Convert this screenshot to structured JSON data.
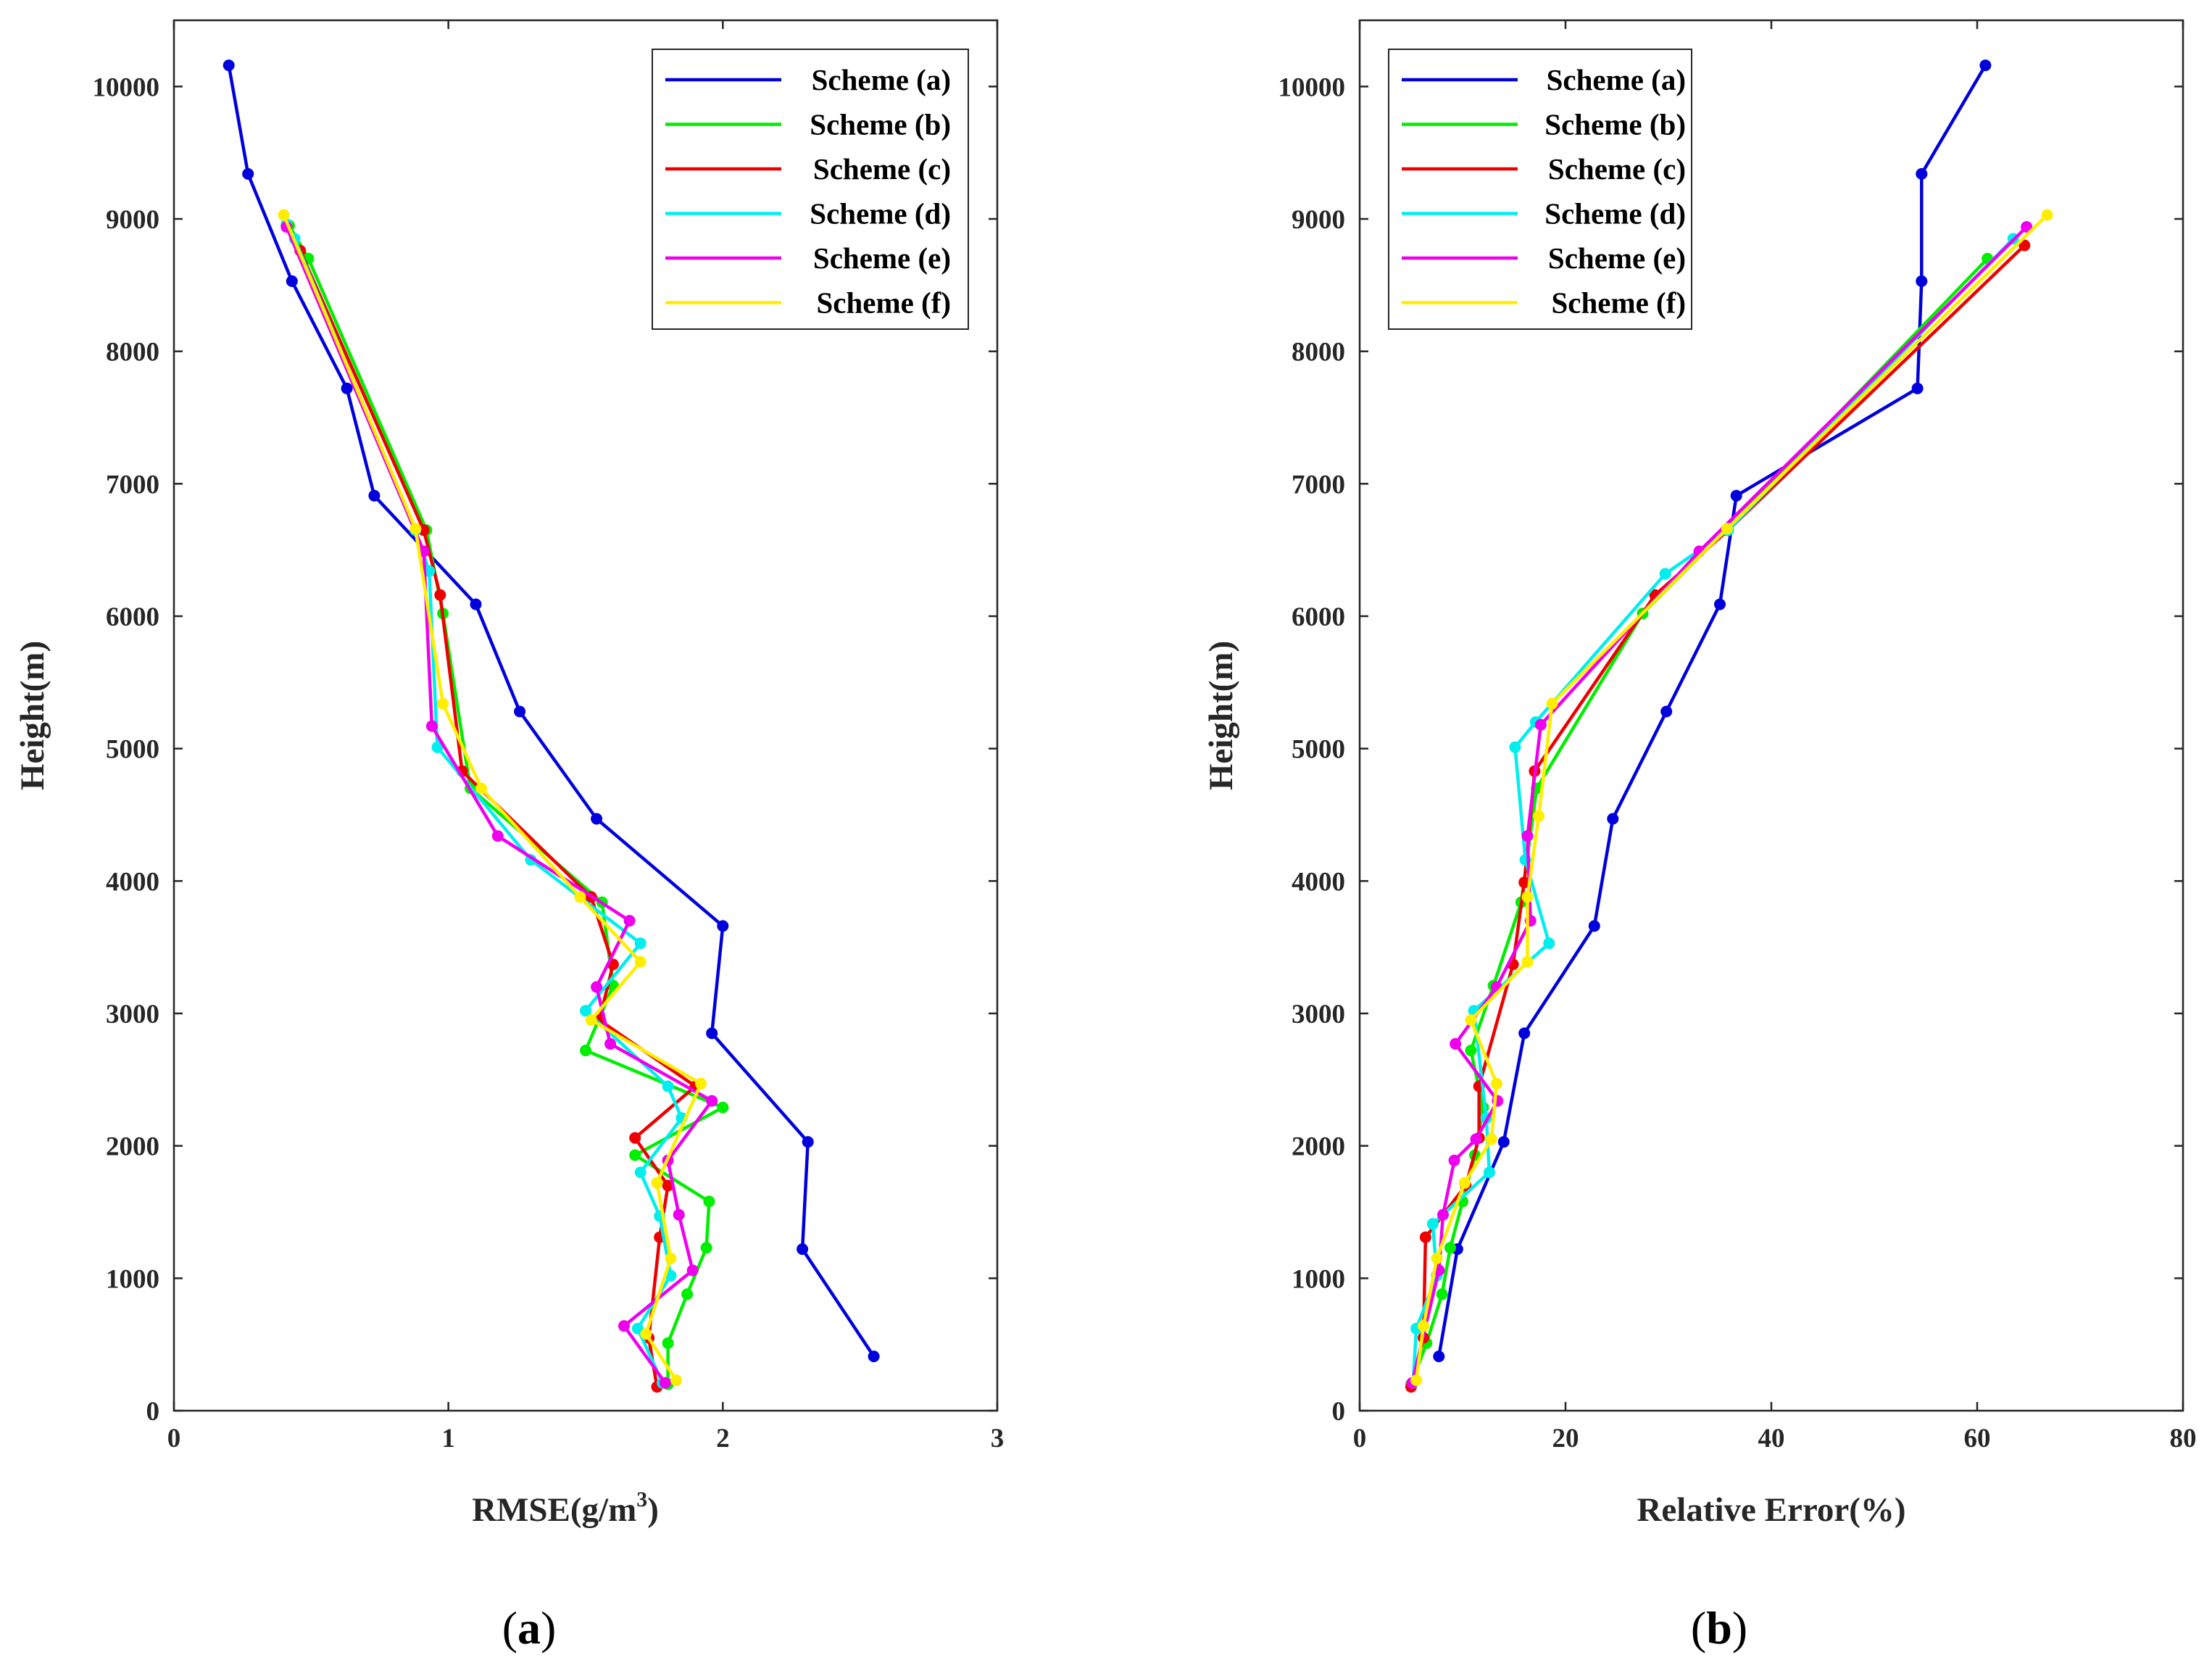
{
  "chart_data": [
    {
      "type": "line",
      "panel": "a",
      "caption": {
        "open": "(",
        "letter": "a",
        "close": ")"
      },
      "title": "",
      "xlabel": "RMSE(g/m",
      "xlabel_sup": "3",
      "xlabel_close": ")",
      "ylabel": "Height(m)",
      "xlim": [
        0,
        3
      ],
      "ylim": [
        0,
        10500
      ],
      "xticks": [
        0,
        1,
        2,
        3
      ],
      "yticks": [
        0,
        1000,
        2000,
        3000,
        4000,
        5000,
        6000,
        7000,
        8000,
        9000,
        10000
      ],
      "legend_position": "top-right",
      "series": [
        {
          "name": "Scheme (a)",
          "color": "#0000dd",
          "x": [
            2.55,
            2.29,
            2.31,
            1.96,
            2.0,
            1.54,
            1.26,
            1.1,
            0.73,
            0.63,
            0.43,
            0.27,
            0.2
          ],
          "y": [
            410,
            1220,
            2030,
            2850,
            3660,
            4470,
            5280,
            6090,
            6910,
            7720,
            8530,
            9340,
            10160
          ]
        },
        {
          "name": "Scheme (b)",
          "color": "#00ee00",
          "x": [
            1.8,
            1.8,
            1.87,
            1.94,
            1.95,
            1.68,
            2.0,
            1.5,
            1.6,
            1.56,
            1.08,
            0.98,
            0.92,
            0.49,
            0.42
          ],
          "y": [
            200,
            510,
            880,
            1230,
            1580,
            1930,
            2290,
            2720,
            3210,
            3840,
            4700,
            6020,
            6650,
            8700,
            8950
          ]
        },
        {
          "name": "Scheme (c)",
          "color": "#ee0000",
          "x": [
            1.76,
            1.73,
            1.77,
            1.8,
            1.68,
            1.9,
            1.55,
            1.6,
            1.52,
            1.05,
            0.97,
            0.91,
            0.46,
            0.41
          ],
          "y": [
            180,
            550,
            1310,
            1700,
            2060,
            2450,
            2950,
            3370,
            3880,
            4830,
            6160,
            6650,
            8760,
            8950
          ]
        },
        {
          "name": "Scheme (d)",
          "color": "#00eeee",
          "x": [
            1.78,
            1.69,
            1.81,
            1.77,
            1.7,
            1.85,
            1.8,
            1.5,
            1.7,
            1.3,
            0.96,
            0.93,
            0.88,
            0.44,
            0.41
          ],
          "y": [
            210,
            620,
            1020,
            1470,
            1800,
            2210,
            2450,
            3020,
            3530,
            4160,
            5010,
            6340,
            6650,
            8850,
            8960
          ]
        },
        {
          "name": "Scheme (e)",
          "color": "#ee00ee",
          "x": [
            1.79,
            1.64,
            1.89,
            1.84,
            1.8,
            1.96,
            1.59,
            1.54,
            1.66,
            1.18,
            0.94,
            0.91,
            0.41
          ],
          "y": [
            210,
            640,
            1060,
            1480,
            1890,
            2340,
            2770,
            3200,
            3700,
            4340,
            5170,
            6490,
            8940
          ]
        },
        {
          "name": "Scheme (f)",
          "color": "#ffee00",
          "x": [
            1.83,
            1.72,
            1.81,
            1.76,
            1.92,
            1.52,
            1.7,
            1.48,
            1.12,
            0.98,
            0.88,
            0.4
          ],
          "y": [
            230,
            580,
            1150,
            1720,
            2470,
            2950,
            3390,
            3880,
            4700,
            5340,
            6660,
            9030
          ]
        }
      ]
    },
    {
      "type": "line",
      "panel": "b",
      "caption": {
        "open": "(",
        "letter": "b",
        "close": ")"
      },
      "title": "",
      "xlabel": "Relative Error(%)",
      "ylabel": "Height(m)",
      "xlim": [
        0,
        80
      ],
      "ylim": [
        0,
        10500
      ],
      "xticks": [
        0,
        20,
        40,
        60,
        80
      ],
      "yticks": [
        0,
        1000,
        2000,
        3000,
        4000,
        5000,
        6000,
        7000,
        8000,
        9000,
        10000
      ],
      "legend_position": "top-right",
      "series": [
        {
          "name": "Scheme (a)",
          "color": "#0000dd",
          "x": [
            7.7,
            9.5,
            14,
            16,
            22.8,
            24.6,
            29.8,
            35,
            36.6,
            54.2,
            54.6,
            54.6,
            60.8
          ],
          "y": [
            410,
            1220,
            2030,
            2850,
            3660,
            4470,
            5280,
            6090,
            6910,
            7720,
            8530,
            9340,
            10160
          ]
        },
        {
          "name": "Scheme (b)",
          "color": "#00ee00",
          "x": [
            5,
            6.5,
            8,
            8.8,
            10,
            11.2,
            12,
            10.8,
            13,
            15.7,
            17.2,
            27.5,
            35.6,
            61
          ],
          "y": [
            200,
            510,
            880,
            1230,
            1580,
            1930,
            2290,
            2720,
            3210,
            3840,
            4700,
            6020,
            6650,
            8700
          ]
        },
        {
          "name": "Scheme (c)",
          "color": "#ee0000",
          "x": [
            5,
            6.2,
            6.4,
            10.3,
            11.6,
            11.6,
            14.9,
            16,
            17,
            28.7,
            35.8,
            64.6
          ],
          "y": [
            180,
            550,
            1310,
            1700,
            2060,
            2450,
            3370,
            3990,
            4830,
            6160,
            6650,
            8800
          ]
        },
        {
          "name": "Scheme (d)",
          "color": "#00eeee",
          "x": [
            5.2,
            5.5,
            7.5,
            7.1,
            12.6,
            12.3,
            11.1,
            18.4,
            16.1,
            15.1,
            17.1,
            29.7,
            35.8,
            63.5
          ],
          "y": [
            210,
            620,
            1020,
            1410,
            1800,
            2210,
            3020,
            3530,
            4160,
            5010,
            5200,
            6320,
            6650,
            8850
          ]
        },
        {
          "name": "Scheme (e)",
          "color": "#ee00ee",
          "x": [
            5.1,
            7.7,
            8.1,
            9.2,
            11.3,
            13.4,
            9.3,
            13.3,
            16.6,
            16.3,
            17.6,
            33,
            64.8
          ],
          "y": [
            210,
            1060,
            1480,
            1890,
            2050,
            2340,
            2770,
            3200,
            3700,
            4340,
            5180,
            6490,
            8940
          ]
        },
        {
          "name": "Scheme (f)",
          "color": "#ffee00",
          "x": [
            5.5,
            6.2,
            7.5,
            10.2,
            12.8,
            13.3,
            10.8,
            16.3,
            16.3,
            17.4,
            18.7,
            35.7,
            66.8
          ],
          "y": [
            230,
            640,
            1150,
            1720,
            2050,
            2470,
            2950,
            3390,
            3880,
            4490,
            5340,
            6660,
            9030
          ]
        }
      ]
    }
  ]
}
